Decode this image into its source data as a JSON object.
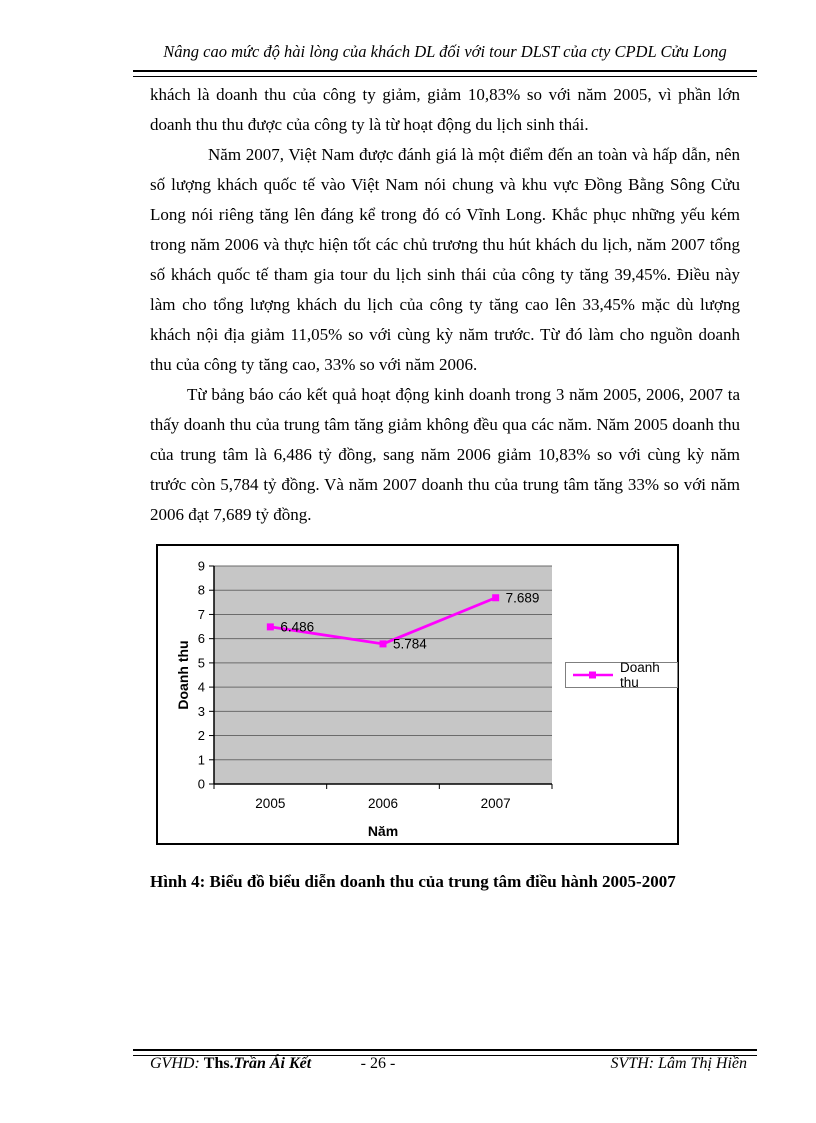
{
  "header": {
    "title": "Nâng cao mức độ hài lòng của khách DL đối với tour DLST của cty CPDL Cửu Long"
  },
  "body": {
    "paragraphs": [
      {
        "text": "khách là doanh thu của công ty giảm, giảm 10,83% so với năm 2005, vì phần lớn doanh thu thu được của công ty là từ hoạt động du lịch sinh thái."
      },
      {
        "text": "Năm 2007, Việt Nam được đánh giá là một điểm đến an toàn và hấp dẫn, nên số lượng khách quốc tế vào Việt Nam nói chung và khu vực Đồng Bằng Sông Cửu Long nói riêng tăng lên đáng kể trong đó có Vĩnh Long. Khắc phục những yếu kém trong năm 2006 và thực hiện tốt các chủ trương thu hút khách du lịch, năm 2007 tổng số khách quốc tế tham gia tour du lịch sinh thái của công ty tăng 39,45%. Điều này làm cho tổng lượng khách du lịch của công ty tăng cao lên 33,45% mặc dù lượng khách nội địa giảm 11,05% so với cùng kỳ năm trước. Từ đó làm cho nguồn doanh thu của công ty tăng cao, 33% so với năm 2006."
      },
      {
        "text": "Từ bảng báo cáo kết quả hoạt động kinh doanh trong 3 năm 2005, 2006, 2007 ta thấy doanh thu của trung tâm tăng giảm không đều qua các năm. Năm 2005 doanh thu của trung tâm là 6,486 tỷ đồng, sang năm 2006 giảm 10,83% so với cùng kỳ năm trước còn 5,784 tỷ đồng. Và năm 2007 doanh thu của trung tâm tăng 33% so với năm 2006 đạt 7,689 tỷ đồng."
      }
    ]
  },
  "chart_data": {
    "type": "line",
    "categories": [
      "2005",
      "2006",
      "2007"
    ],
    "series": [
      {
        "name": "Doanh thu",
        "values": [
          6.486,
          5.784,
          7.689
        ]
      }
    ],
    "data_labels": [
      "6.486",
      "5.784",
      "7.689"
    ],
    "title": "",
    "xlabel": "Năm",
    "ylabel": "Doanh thu",
    "ylim": [
      0,
      9
    ],
    "ytick_step": 1,
    "yticks": [
      "0",
      "1",
      "2",
      "3",
      "4",
      "5",
      "6",
      "7",
      "8",
      "9"
    ],
    "grid": true,
    "legend_position": "right",
    "line_color": "#FF00FF",
    "plot_bg": "#C6C6C6",
    "gridline_color": "#6B6B6B"
  },
  "caption": {
    "text": "Hình 4: Biểu đồ biểu diễn doanh thu của trung tâm điều hành 2005-2007"
  },
  "footer": {
    "gvhd_label": "GVHD: ",
    "gvhd_degree": "Ths.",
    "gvhd_name": "Trần Ái Kết",
    "page_number": "- 26 -",
    "svth": "SVTH: Lâm Thị Hiền"
  }
}
